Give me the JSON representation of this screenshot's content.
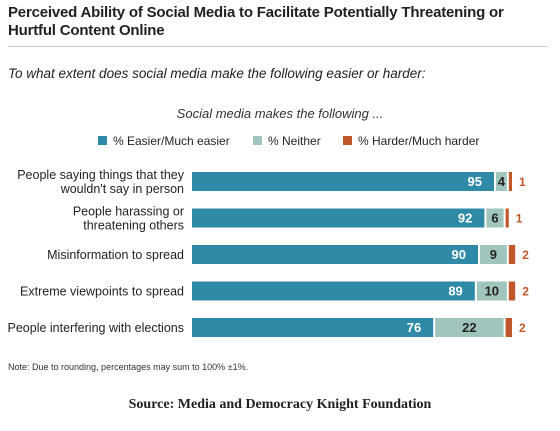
{
  "header": {
    "title": "Perceived Ability of Social Media to Facilitate Potentially Threatening or Hurtful Content Online",
    "question": "To what extent does social media make the following easier or harder:",
    "subtitle": "Social media makes the following ..."
  },
  "legend": [
    {
      "label": "% Easier/Much easier",
      "color": "#2e8aa6"
    },
    {
      "label": "% Neither",
      "color": "#9fc5bd"
    },
    {
      "label": "% Harder/Much harder",
      "color": "#c0582b"
    }
  ],
  "chart_data": {
    "type": "bar",
    "orientation": "horizontal",
    "stacked": true,
    "categories": [
      "People saying things that they\nwouldn't say in person",
      "People harassing or\nthreatening others",
      "Misinformation to spread",
      "Extreme viewpoints to spread",
      "People interfering with elections"
    ],
    "series": [
      {
        "name": "% Easier/Much easier",
        "color": "#2e8aa6",
        "values": [
          95,
          92,
          90,
          89,
          76
        ]
      },
      {
        "name": "% Neither",
        "color": "#9fc5bd",
        "values": [
          4,
          6,
          9,
          10,
          22
        ]
      },
      {
        "name": "% Harder/Much harder",
        "color": "#c0582b",
        "values": [
          1,
          1,
          2,
          2,
          2
        ]
      }
    ],
    "xlim": [
      0,
      100
    ],
    "grid": false,
    "legend_position": "top"
  },
  "footer": {
    "note": "Note: Due to rounding, percentages may sum to 100% ±1%.",
    "source": "Source: Media and Democracy Knight Foundation"
  }
}
